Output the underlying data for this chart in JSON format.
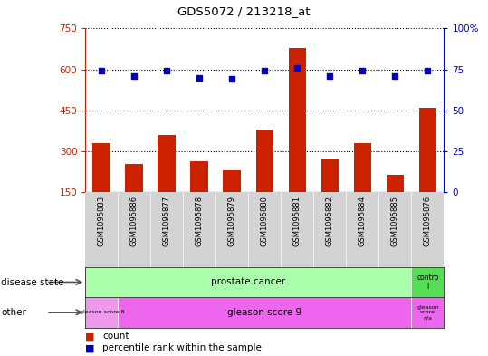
{
  "title": "GDS5072 / 213218_at",
  "samples": [
    "GSM1095883",
    "GSM1095886",
    "GSM1095877",
    "GSM1095878",
    "GSM1095879",
    "GSM1095880",
    "GSM1095881",
    "GSM1095882",
    "GSM1095884",
    "GSM1095885",
    "GSM1095876"
  ],
  "counts": [
    330,
    255,
    360,
    265,
    230,
    380,
    680,
    270,
    330,
    215,
    460
  ],
  "percentile_ranks": [
    74,
    71,
    74,
    70,
    69,
    74,
    76,
    71,
    74,
    71,
    74
  ],
  "ylim_left": [
    150,
    750
  ],
  "ylim_right": [
    0,
    100
  ],
  "yticks_left": [
    150,
    300,
    450,
    600,
    750
  ],
  "yticks_right": [
    0,
    25,
    50,
    75,
    100
  ],
  "bar_color": "#cc2200",
  "dot_color": "#0000cc",
  "grid_color": "black",
  "axis_color_left": "#cc2200",
  "axis_color_right": "#0000cc",
  "plot_bg": "#ffffff",
  "xlabels_bg": "#d3d3d3",
  "disease_state_pc_color": "#aaffaa",
  "disease_state_ctrl_color": "#55dd55",
  "gleason8_color": "#ee99ee",
  "gleason9_color": "#ee66ee",
  "gleasonNA_color": "#ee66ee",
  "legend_count_label": "count",
  "legend_pct_label": "percentile rank within the sample"
}
